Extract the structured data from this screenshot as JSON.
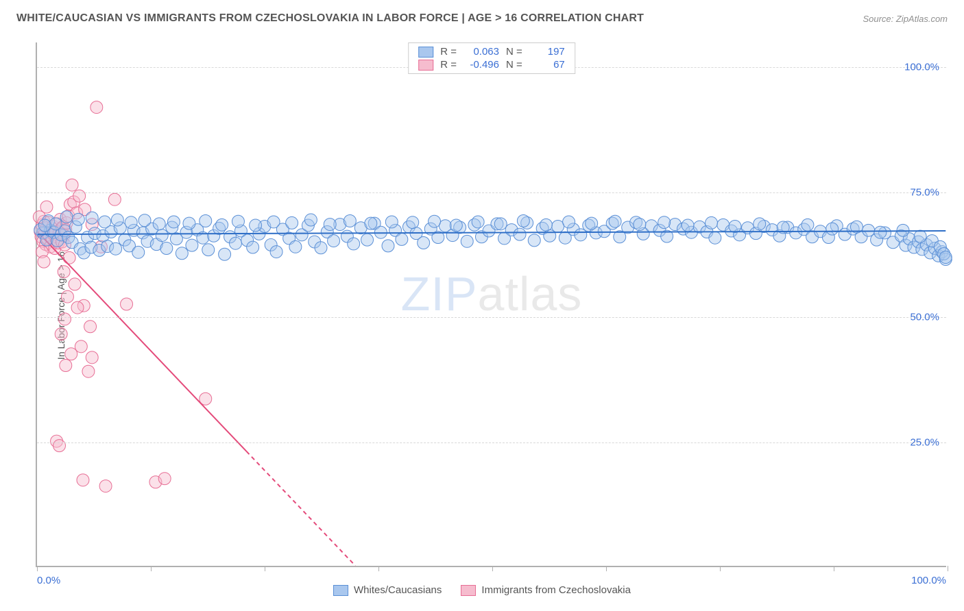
{
  "title": "WHITE/CAUCASIAN VS IMMIGRANTS FROM CZECHOSLOVAKIA IN LABOR FORCE | AGE > 16 CORRELATION CHART",
  "source_label": "Source: ZipAtlas.com",
  "ylabel": "In Labor Force | Age > 16",
  "watermark_pre": "ZIP",
  "watermark_post": "atlas",
  "chart": {
    "type": "scatter-with-regression",
    "background_color": "#ffffff",
    "grid_color": "#d8d8d8",
    "axis_color": "#b0b0b0",
    "tick_label_color": "#3b6fd4",
    "label_color": "#555555",
    "xlim": [
      0,
      100
    ],
    "ylim": [
      0,
      105
    ],
    "x_ticks": [
      0,
      12.5,
      25,
      37.5,
      50,
      62.5,
      75,
      87.5,
      100
    ],
    "x_tick_labels": {
      "0": "0.0%",
      "100": "100.0%"
    },
    "y_ticks": [
      25,
      50,
      75,
      100
    ],
    "y_tick_labels": {
      "25": "25.0%",
      "50": "50.0%",
      "75": "75.0%",
      "100": "100.0%"
    },
    "marker_radius": 9,
    "marker_opacity": 0.45,
    "line_width": 2,
    "series": [
      {
        "name": "Whites/Caucasians",
        "color_fill": "#a9c7ee",
        "color_stroke": "#5a8fd6",
        "line_color": "#2f6fc7",
        "R": "0.063",
        "N": "197",
        "regression": {
          "x1": 0,
          "y1": 66.5,
          "x2": 100,
          "y2": 67.2,
          "dashed_from_x": null
        },
        "points": [
          [
            0.6,
            66.8
          ],
          [
            1.0,
            65.4
          ],
          [
            1.4,
            67.3
          ],
          [
            1.8,
            66.9
          ],
          [
            2.2,
            65.2
          ],
          [
            2.6,
            66.4
          ],
          [
            3.0,
            67.2
          ],
          [
            3.4,
            65.9
          ],
          [
            3.8,
            64.9
          ],
          [
            4.2,
            68.0
          ],
          [
            4.7,
            63.6
          ],
          [
            5.1,
            62.8
          ],
          [
            5.5,
            65.9
          ],
          [
            5.9,
            63.9
          ],
          [
            6.3,
            66.7
          ],
          [
            6.8,
            63.3
          ],
          [
            7.2,
            66.2
          ],
          [
            7.7,
            64.1
          ],
          [
            8.1,
            67.0
          ],
          [
            8.6,
            63.6
          ],
          [
            9.1,
            67.8
          ],
          [
            9.6,
            65.4
          ],
          [
            10.1,
            64.2
          ],
          [
            10.6,
            67.3
          ],
          [
            11.1,
            62.9
          ],
          [
            11.6,
            66.8
          ],
          [
            12.1,
            65.1
          ],
          [
            12.6,
            67.6
          ],
          [
            13.1,
            64.5
          ],
          [
            13.7,
            66.3
          ],
          [
            14.2,
            63.7
          ],
          [
            14.8,
            67.9
          ],
          [
            15.3,
            65.6
          ],
          [
            15.9,
            62.7
          ],
          [
            16.4,
            66.9
          ],
          [
            17.0,
            64.3
          ],
          [
            17.6,
            67.4
          ],
          [
            18.2,
            65.8
          ],
          [
            18.8,
            63.4
          ],
          [
            19.4,
            66.2
          ],
          [
            20.0,
            67.7
          ],
          [
            20.6,
            62.5
          ],
          [
            21.2,
            66.0
          ],
          [
            21.8,
            64.7
          ],
          [
            22.4,
            67.2
          ],
          [
            23.1,
            65.3
          ],
          [
            23.7,
            63.9
          ],
          [
            24.4,
            66.6
          ],
          [
            25.0,
            68.1
          ],
          [
            25.7,
            64.4
          ],
          [
            26.3,
            63.0
          ],
          [
            27.0,
            67.5
          ],
          [
            27.7,
            65.7
          ],
          [
            28.4,
            64.0
          ],
          [
            29.1,
            66.4
          ],
          [
            29.8,
            68.3
          ],
          [
            30.5,
            65.0
          ],
          [
            31.2,
            63.8
          ],
          [
            31.9,
            67.0
          ],
          [
            32.6,
            65.2
          ],
          [
            33.3,
            68.5
          ],
          [
            34.1,
            66.1
          ],
          [
            34.8,
            64.6
          ],
          [
            35.6,
            67.8
          ],
          [
            36.3,
            65.4
          ],
          [
            37.1,
            68.7
          ],
          [
            37.8,
            66.9
          ],
          [
            38.6,
            64.2
          ],
          [
            39.4,
            67.3
          ],
          [
            40.1,
            65.5
          ],
          [
            40.9,
            68.0
          ],
          [
            41.7,
            66.7
          ],
          [
            42.5,
            64.8
          ],
          [
            43.3,
            67.6
          ],
          [
            44.1,
            65.9
          ],
          [
            44.9,
            68.2
          ],
          [
            45.7,
            66.3
          ],
          [
            46.5,
            67.9
          ],
          [
            47.3,
            65.1
          ],
          [
            48.1,
            68.4
          ],
          [
            48.9,
            66.0
          ],
          [
            49.7,
            67.2
          ],
          [
            50.6,
            68.6
          ],
          [
            51.4,
            65.7
          ],
          [
            52.2,
            67.4
          ],
          [
            53.1,
            66.5
          ],
          [
            53.9,
            68.8
          ],
          [
            54.7,
            65.3
          ],
          [
            55.6,
            67.7
          ],
          [
            56.4,
            66.2
          ],
          [
            57.3,
            68.1
          ],
          [
            58.1,
            65.8
          ],
          [
            59.0,
            67.5
          ],
          [
            59.8,
            66.4
          ],
          [
            60.7,
            68.3
          ],
          [
            61.5,
            66.8
          ],
          [
            62.4,
            67.1
          ],
          [
            63.3,
            68.7
          ],
          [
            64.1,
            66.0
          ],
          [
            65.0,
            67.9
          ],
          [
            65.9,
            68.9
          ],
          [
            66.7,
            66.6
          ],
          [
            67.6,
            68.2
          ],
          [
            68.5,
            67.3
          ],
          [
            69.3,
            66.1
          ],
          [
            70.2,
            68.5
          ],
          [
            71.1,
            67.6
          ],
          [
            72.0,
            66.9
          ],
          [
            72.9,
            68.0
          ],
          [
            73.7,
            67.0
          ],
          [
            74.6,
            65.8
          ],
          [
            75.5,
            68.4
          ],
          [
            76.4,
            67.2
          ],
          [
            77.3,
            66.4
          ],
          [
            78.2,
            67.8
          ],
          [
            79.1,
            66.7
          ],
          [
            80.0,
            68.1
          ],
          [
            80.9,
            67.4
          ],
          [
            81.7,
            66.2
          ],
          [
            82.6,
            67.9
          ],
          [
            83.5,
            66.8
          ],
          [
            84.4,
            67.5
          ],
          [
            85.3,
            66.0
          ],
          [
            86.2,
            67.1
          ],
          [
            87.1,
            65.9
          ],
          [
            88.0,
            68.2
          ],
          [
            88.9,
            66.5
          ],
          [
            89.8,
            67.6
          ],
          [
            90.7,
            66.0
          ],
          [
            91.5,
            67.3
          ],
          [
            92.4,
            65.4
          ],
          [
            93.3,
            66.8
          ],
          [
            94.2,
            64.9
          ],
          [
            95.1,
            66.2
          ],
          [
            95.6,
            64.3
          ],
          [
            96.0,
            65.6
          ],
          [
            96.5,
            63.9
          ],
          [
            97.0,
            65.0
          ],
          [
            97.4,
            63.5
          ],
          [
            97.9,
            64.4
          ],
          [
            98.3,
            62.8
          ],
          [
            98.8,
            63.7
          ],
          [
            99.2,
            62.2
          ],
          [
            99.6,
            63.0
          ],
          [
            100.0,
            61.5
          ],
          [
            1.2,
            69.2
          ],
          [
            2.0,
            68.6
          ],
          [
            3.2,
            70.0
          ],
          [
            4.5,
            69.5
          ],
          [
            6.0,
            69.8
          ],
          [
            7.4,
            69.0
          ],
          [
            8.8,
            69.4
          ],
          [
            10.3,
            68.9
          ],
          [
            11.8,
            69.3
          ],
          [
            13.4,
            68.6
          ],
          [
            15.0,
            69.0
          ],
          [
            16.7,
            68.7
          ],
          [
            18.5,
            69.2
          ],
          [
            20.3,
            68.4
          ],
          [
            22.1,
            69.1
          ],
          [
            24.0,
            68.3
          ],
          [
            26.0,
            69.0
          ],
          [
            28.0,
            68.8
          ],
          [
            30.1,
            69.4
          ],
          [
            32.2,
            68.5
          ],
          [
            34.4,
            69.2
          ],
          [
            36.7,
            68.7
          ],
          [
            39.0,
            69.0
          ],
          [
            41.3,
            68.9
          ],
          [
            43.7,
            69.1
          ],
          [
            46.1,
            68.3
          ],
          [
            48.5,
            69.0
          ],
          [
            51.0,
            68.6
          ],
          [
            53.5,
            69.2
          ],
          [
            56.0,
            68.4
          ],
          [
            58.5,
            69.0
          ],
          [
            61.0,
            68.7
          ],
          [
            63.6,
            69.1
          ],
          [
            66.3,
            68.5
          ],
          [
            69.0,
            68.9
          ],
          [
            71.6,
            68.3
          ],
          [
            74.2,
            68.8
          ],
          [
            76.8,
            68.1
          ],
          [
            79.5,
            68.6
          ],
          [
            82.1,
            67.9
          ],
          [
            84.8,
            68.4
          ],
          [
            87.5,
            67.6
          ],
          [
            90.2,
            68.0
          ],
          [
            92.8,
            66.9
          ],
          [
            95.3,
            67.3
          ],
          [
            97.2,
            66.1
          ],
          [
            98.5,
            65.2
          ],
          [
            99.4,
            64.0
          ],
          [
            99.8,
            62.6
          ],
          [
            100.0,
            61.9
          ],
          [
            0.3,
            67.4
          ],
          [
            0.8,
            68.3
          ]
        ]
      },
      {
        "name": "Immigrants from Czechoslovakia",
        "color_fill": "#f6bcce",
        "color_stroke": "#e76d94",
        "line_color": "#e44a7a",
        "R": "-0.496",
        "N": "67",
        "regression": {
          "x1": 0,
          "y1": 67.0,
          "x2": 35,
          "y2": 0,
          "dashed_from_x": 23
        },
        "points": [
          [
            0.3,
            67.1
          ],
          [
            0.4,
            66.0
          ],
          [
            0.5,
            68.4
          ],
          [
            0.6,
            65.1
          ],
          [
            0.7,
            69.1
          ],
          [
            0.8,
            66.7
          ],
          [
            0.9,
            64.5
          ],
          [
            1.0,
            67.8
          ],
          [
            1.1,
            65.6
          ],
          [
            1.2,
            68.9
          ],
          [
            1.3,
            66.2
          ],
          [
            1.4,
            64.0
          ],
          [
            1.5,
            67.3
          ],
          [
            1.6,
            65.8
          ],
          [
            1.7,
            68.1
          ],
          [
            1.8,
            66.5
          ],
          [
            1.9,
            63.7
          ],
          [
            2.0,
            67.0
          ],
          [
            2.1,
            65.3
          ],
          [
            2.2,
            68.6
          ],
          [
            2.3,
            64.8
          ],
          [
            2.4,
            66.9
          ],
          [
            2.5,
            69.5
          ],
          [
            2.6,
            67.6
          ],
          [
            2.7,
            65.0
          ],
          [
            2.8,
            68.0
          ],
          [
            2.9,
            66.3
          ],
          [
            3.0,
            64.4
          ],
          [
            3.1,
            67.4
          ],
          [
            3.2,
            68.8
          ],
          [
            3.4,
            70.2
          ],
          [
            3.6,
            72.5
          ],
          [
            3.8,
            76.4
          ],
          [
            4.0,
            73.0
          ],
          [
            4.3,
            70.8
          ],
          [
            4.6,
            74.2
          ],
          [
            5.2,
            71.5
          ],
          [
            6.0,
            68.5
          ],
          [
            7.0,
            64.0
          ],
          [
            3.5,
            61.8
          ],
          [
            2.9,
            59.0
          ],
          [
            4.1,
            56.5
          ],
          [
            3.3,
            54.0
          ],
          [
            5.1,
            52.2
          ],
          [
            4.4,
            51.8
          ],
          [
            3.0,
            49.5
          ],
          [
            5.8,
            48.0
          ],
          [
            2.6,
            46.5
          ],
          [
            4.8,
            44.0
          ],
          [
            3.7,
            42.5
          ],
          [
            6.0,
            41.8
          ],
          [
            3.1,
            40.2
          ],
          [
            5.6,
            39.0
          ],
          [
            2.1,
            25.0
          ],
          [
            2.4,
            24.1
          ],
          [
            7.5,
            16.0
          ],
          [
            5.0,
            17.2
          ],
          [
            13.0,
            16.8
          ],
          [
            14.0,
            17.5
          ],
          [
            9.8,
            52.5
          ],
          [
            18.5,
            33.5
          ],
          [
            8.5,
            73.5
          ],
          [
            0.2,
            70.0
          ],
          [
            1.0,
            72.0
          ],
          [
            6.5,
            92.0
          ],
          [
            0.5,
            63.0
          ],
          [
            0.7,
            61.0
          ]
        ]
      }
    ]
  },
  "legend_top": {
    "label_R": "R =",
    "label_N": "N ="
  },
  "legend_bottom": {
    "items": [
      "Whites/Caucasians",
      "Immigrants from Czechoslovakia"
    ]
  }
}
